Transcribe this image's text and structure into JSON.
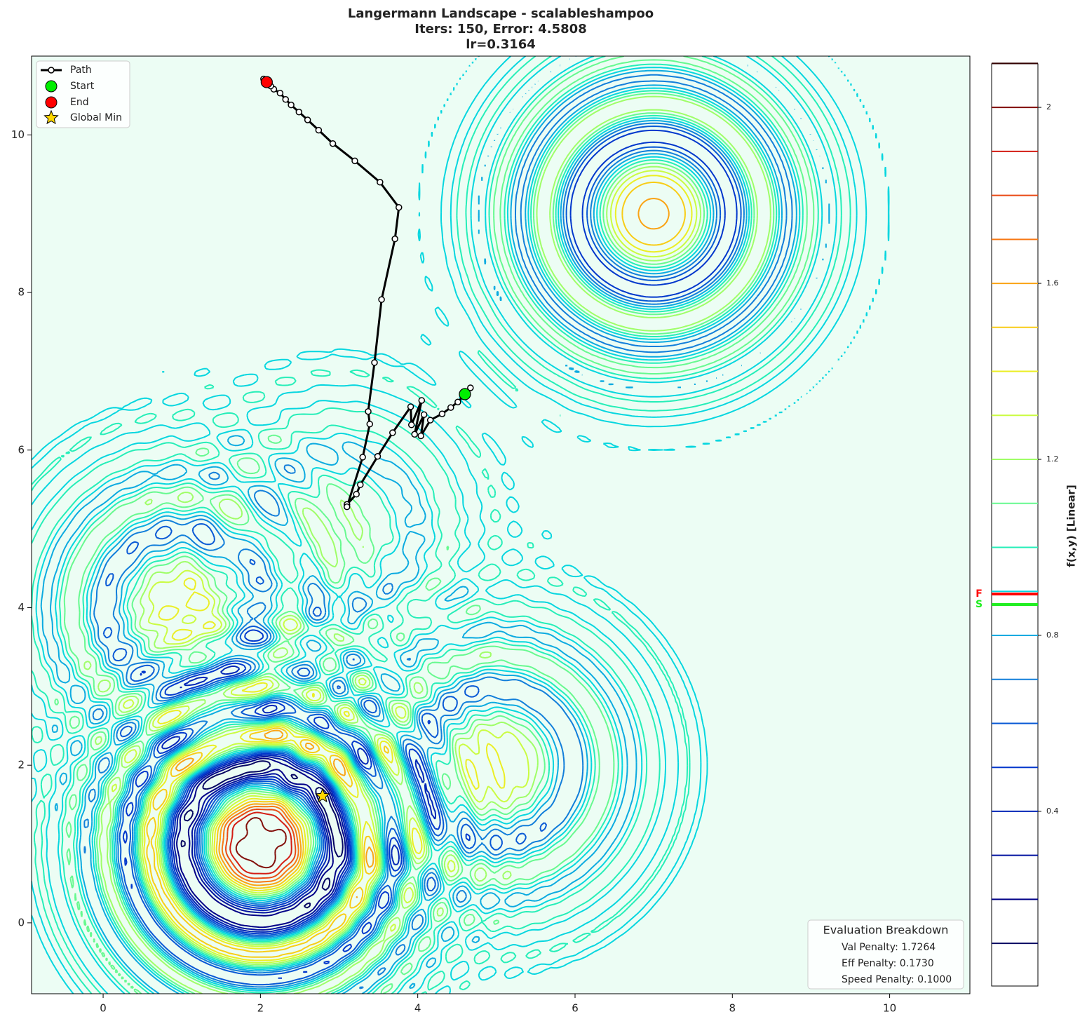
{
  "chart_data": {
    "type": "contour",
    "title_lines": [
      "Langermann Landscape - scalableshampoo",
      "Iters: 150, Error: 4.5808",
      "lr=0.3164"
    ],
    "xlim": [
      -0.91,
      11.02
    ],
    "ylim": [
      -0.9,
      11.0
    ],
    "xticks": [
      0,
      2,
      4,
      6,
      8,
      10
    ],
    "yticks": [
      0,
      2,
      4,
      6,
      8,
      10
    ],
    "path": {
      "name": "Path",
      "color": "#000000",
      "x": [
        4.67,
        4.6,
        4.51,
        4.42,
        4.31,
        4.16,
        4.04,
        4.08,
        3.96,
        4.05,
        3.92,
        3.91,
        3.68,
        3.49,
        3.27,
        3.22,
        3.1,
        3.1,
        3.3,
        3.39,
        3.37,
        3.45,
        3.54,
        3.71,
        3.76,
        3.52,
        3.2,
        2.92,
        2.74,
        2.6,
        2.49,
        2.39,
        2.32,
        2.25,
        2.17,
        2.13,
        2.09,
        2.04
      ],
      "y": [
        6.79,
        6.71,
        6.61,
        6.54,
        6.46,
        6.38,
        6.18,
        6.45,
        6.2,
        6.63,
        6.32,
        6.55,
        6.22,
        5.92,
        5.56,
        5.44,
        5.31,
        5.28,
        5.91,
        6.33,
        6.49,
        7.11,
        7.91,
        8.68,
        9.08,
        9.4,
        9.67,
        9.89,
        10.06,
        10.19,
        10.29,
        10.38,
        10.45,
        10.53,
        10.58,
        10.62,
        10.67,
        10.71
      ]
    },
    "start": {
      "name": "Start",
      "color": "#00ee00",
      "x": 4.6,
      "y": 6.71
    },
    "end": {
      "name": "End",
      "color": "#ff0000",
      "x": 2.08,
      "y": 10.67
    },
    "global_min": {
      "name": "Global Min",
      "color": "#ffd700",
      "x": 2.79,
      "y": 1.61
    },
    "colorbar": {
      "label": "f(x,y) [Linear]",
      "lim": [
        0.003,
        2.099
      ],
      "ticks": [
        0.4,
        0.8,
        1.2,
        1.6,
        2.0
      ],
      "levels": [
        0.1,
        0.2,
        0.3,
        0.4,
        0.5,
        0.6,
        0.7,
        0.8,
        0.9,
        1.0,
        1.1,
        1.2,
        1.3,
        1.4,
        1.5,
        1.6,
        1.7,
        1.8,
        1.9,
        2.0,
        2.1
      ],
      "markers": [
        {
          "label": "F",
          "value": 0.894,
          "color": "#ff0000"
        },
        {
          "label": "S",
          "value": 0.87,
          "color": "#22ee22"
        }
      ]
    },
    "annotation": {
      "title": "Evaluation Breakdown",
      "lines": [
        "Val Penalty: 1.7264",
        "Eff Penalty: 0.1730",
        "Speed Penalty: 0.1000"
      ]
    }
  }
}
